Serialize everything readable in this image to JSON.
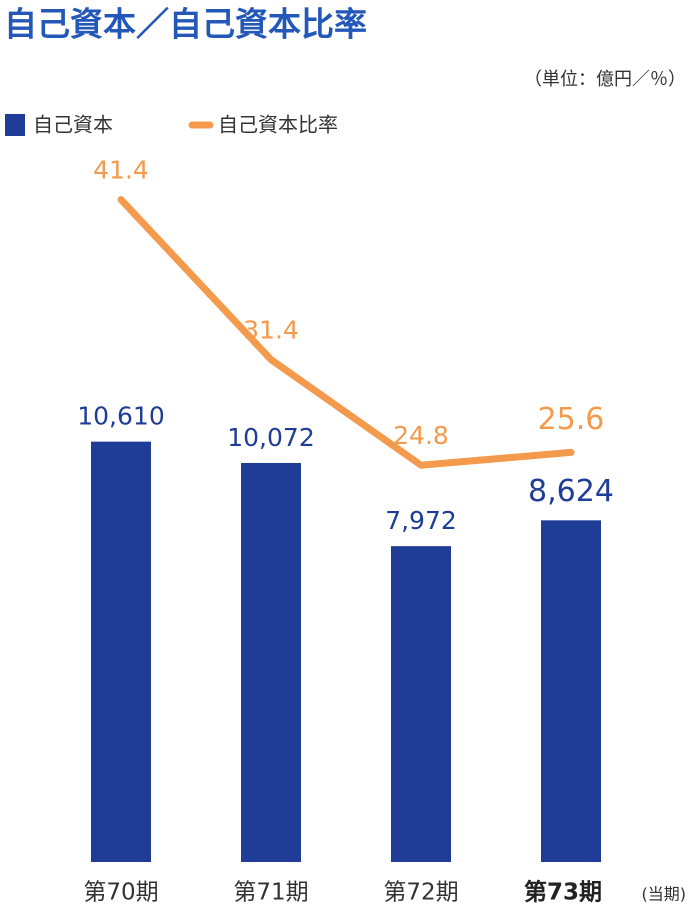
{
  "chart_data": {
    "type": "combo",
    "title": "自己資本／自己資本比率",
    "unit": "（単位：億円／％）",
    "categories": [
      "第70期",
      "第71期",
      "第72期",
      "第73期"
    ],
    "category_note": "(当期)",
    "series": [
      {
        "name": "自己資本",
        "type": "bar",
        "color": "#1f3c96",
        "values": [
          10610,
          10072,
          7972,
          8624
        ],
        "value_labels": [
          "10,610",
          "10,072",
          "7,972",
          "8,624"
        ]
      },
      {
        "name": "自己資本比率",
        "type": "line",
        "color": "#f39a4c",
        "axis": "y2",
        "values": [
          41.4,
          31.4,
          24.8,
          25.6
        ]
      }
    ],
    "ylim": [
      0,
      21000
    ],
    "y2lim": [
      0,
      52
    ],
    "grid": false
  }
}
